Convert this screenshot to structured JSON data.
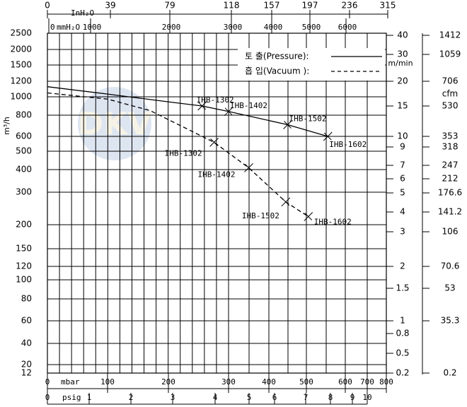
{
  "chart_data": {
    "type": "line",
    "watermark": "DKV",
    "ylabel": "m³/h",
    "ylim": [
      12,
      2500
    ],
    "yticks": [
      12,
      20,
      40,
      60,
      80,
      100,
      120,
      150,
      200,
      300,
      400,
      500,
      600,
      800,
      1000,
      1200,
      1500,
      2000,
      2500
    ],
    "xlabel": "mbar",
    "xlim": [
      0,
      800
    ],
    "xticks": [
      0,
      100,
      200,
      300,
      400,
      500,
      600,
      700,
      800
    ],
    "psig_axis": {
      "label": "psig",
      "ticks": [
        0,
        1,
        2,
        3,
        4,
        5,
        6,
        7,
        8,
        9,
        10
      ]
    },
    "inh2o_axis": {
      "label": "InH₂O",
      "ticks": [
        0,
        39,
        79,
        118,
        157,
        197,
        236,
        315
      ]
    },
    "mmh2o_axis": {
      "label": "mmH₂O",
      "ticks": [
        0,
        1000,
        2000,
        3000,
        4000,
        5000,
        6000
      ]
    },
    "m_min_axis": {
      "label": "m/min",
      "ticks": [
        40,
        30,
        20,
        15,
        10,
        9,
        7,
        6,
        5,
        4,
        3,
        2,
        1.5,
        1,
        0.8,
        0.5,
        0.2
      ]
    },
    "cfm_axis": {
      "label": "cfm",
      "ticks": [
        1412,
        1059,
        706,
        530,
        353,
        318,
        247,
        212,
        176.6,
        141.2,
        106,
        70.6,
        53,
        35.3,
        0.2
      ]
    },
    "grid": true,
    "series": [
      {
        "name": "토 출(Pressure):",
        "color": "#000000",
        "dashed": false,
        "x": [
          0,
          100,
          200,
          256,
          300,
          450,
          555
        ],
        "values": [
          1130,
          1035,
          945,
          900,
          840,
          710,
          600
        ],
        "annotations": [
          {
            "label": "IHB-1302",
            "x": 256,
            "y": 900
          },
          {
            "label": "IHB-1402",
            "x": 300,
            "y": 840
          },
          {
            "label": "IHB-1502",
            "x": 450,
            "y": 710
          },
          {
            "label": "IHB-1602",
            "x": 555,
            "y": 600
          }
        ]
      },
      {
        "name": "흡 입(Vacuum ):",
        "color": "#000000",
        "dashed": true,
        "x": [
          0,
          100,
          170,
          276,
          350,
          445,
          505
        ],
        "values": [
          1050,
          975,
          850,
          560,
          410,
          270,
          225
        ],
        "annotations": [
          {
            "label": "IHB-1302",
            "x": 276,
            "y": 560
          },
          {
            "label": "IHB-1402",
            "x": 350,
            "y": 410
          },
          {
            "label": "IHB-1502",
            "x": 445,
            "y": 270
          },
          {
            "label": "IHB-1602",
            "x": 505,
            "y": 225
          }
        ]
      }
    ]
  }
}
